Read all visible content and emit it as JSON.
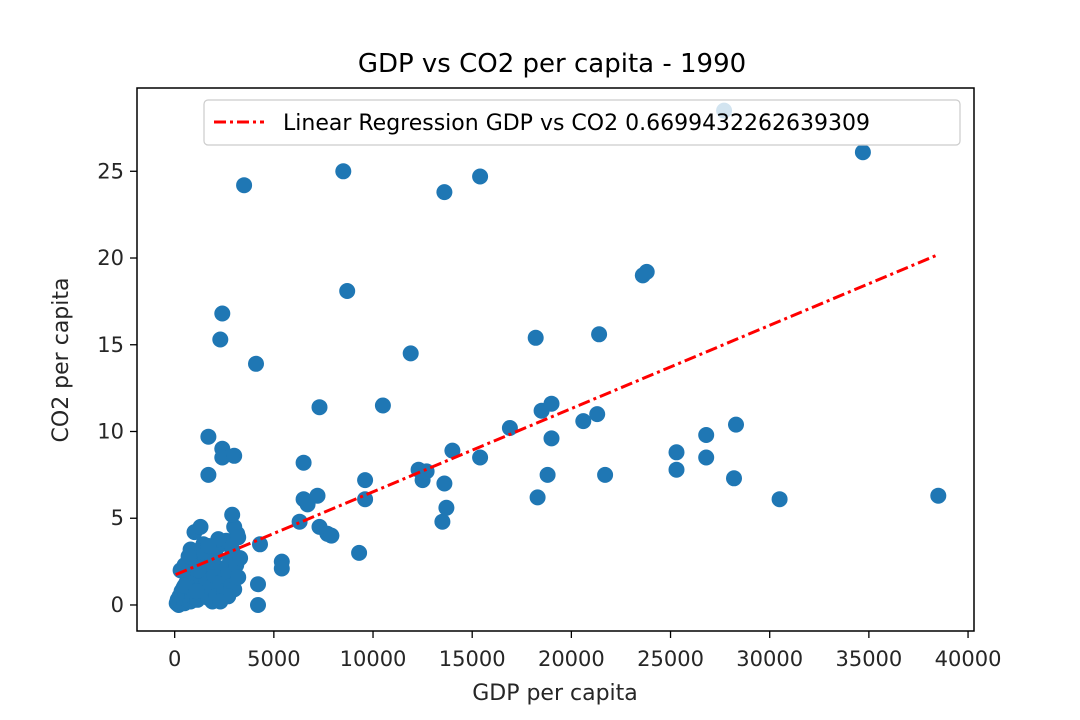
{
  "chart_data": {
    "type": "scatter",
    "title": "GDP vs CO2 per capita - 1990",
    "xlabel": "GDP per capita",
    "ylabel": "CO2 per capita",
    "xlim": [
      -1900,
      40300
    ],
    "ylim": [
      -1.5,
      29.8
    ],
    "x_ticks": [
      0,
      5000,
      10000,
      15000,
      20000,
      25000,
      30000,
      35000,
      40000
    ],
    "x_tick_labels": [
      "0",
      "5000",
      "10000",
      "15000",
      "20000",
      "25000",
      "30000",
      "35000",
      "40000"
    ],
    "y_ticks": [
      0,
      5,
      10,
      15,
      20,
      25
    ],
    "y_tick_labels": [
      "0",
      "5",
      "10",
      "15",
      "20",
      "25"
    ],
    "grid": false,
    "legend_position": "upper right",
    "series": [
      {
        "kind": "scatter",
        "color": "#1f77b4",
        "points": [
          [
            100,
            0.1
          ],
          [
            150,
            0.3
          ],
          [
            200,
            0.0
          ],
          [
            250,
            0.5
          ],
          [
            300,
            0.2
          ],
          [
            350,
            0.8
          ],
          [
            400,
            0.4
          ],
          [
            450,
            1.0
          ],
          [
            500,
            0.1
          ],
          [
            550,
            0.6
          ],
          [
            600,
            1.3
          ],
          [
            650,
            0.3
          ],
          [
            700,
            0.9
          ],
          [
            750,
            1.6
          ],
          [
            800,
            0.2
          ],
          [
            850,
            1.1
          ],
          [
            900,
            0.5
          ],
          [
            950,
            2.0
          ],
          [
            1000,
            0.7
          ],
          [
            1050,
            1.4
          ],
          [
            1100,
            2.6
          ],
          [
            1150,
            0.3
          ],
          [
            1200,
            1.8
          ],
          [
            1250,
            3.1
          ],
          [
            1300,
            0.9
          ],
          [
            1350,
            2.2
          ],
          [
            1400,
            1.2
          ],
          [
            1450,
            3.5
          ],
          [
            1500,
            0.6
          ],
          [
            1550,
            2.8
          ],
          [
            1600,
            1.5
          ],
          [
            1700,
            0.4
          ],
          [
            1750,
            2.4
          ],
          [
            1800,
            1.0
          ],
          [
            1850,
            3.0
          ],
          [
            1900,
            0.2
          ],
          [
            2000,
            1.7
          ],
          [
            2050,
            2.9
          ],
          [
            2100,
            0.5
          ],
          [
            2200,
            3.4
          ],
          [
            2300,
            1.3
          ],
          [
            2400,
            2.1
          ],
          [
            2500,
            0.8
          ],
          [
            2600,
            3.7
          ],
          [
            2700,
            1.9
          ],
          [
            2800,
            2.6
          ],
          [
            2850,
            1.1
          ],
          [
            2900,
            3.2
          ],
          [
            3000,
            0.9
          ],
          [
            3100,
            2.3
          ],
          [
            3150,
            4.1
          ],
          [
            3200,
            1.6
          ],
          [
            3000,
            4.5
          ],
          [
            2900,
            5.2
          ],
          [
            1000,
            4.2
          ],
          [
            1300,
            4.5
          ],
          [
            800,
            3.2
          ],
          [
            1500,
            3.0
          ],
          [
            3200,
            3.9
          ],
          [
            300,
            2.0
          ],
          [
            500,
            2.3
          ],
          [
            1200,
            2.0
          ],
          [
            2200,
            3.8
          ],
          [
            500,
            1.1
          ],
          [
            2700,
            0.5
          ],
          [
            1900,
            2.5
          ],
          [
            1100,
            0.8
          ],
          [
            700,
            2.8
          ],
          [
            2300,
            0.2
          ],
          [
            3300,
            2.7
          ],
          [
            1700,
            3.4
          ],
          [
            1700,
            9.7
          ],
          [
            2400,
            9.0
          ],
          [
            2400,
            8.5
          ],
          [
            3000,
            8.6
          ],
          [
            1700,
            7.5
          ],
          [
            2400,
            16.8
          ],
          [
            2300,
            15.3
          ],
          [
            4100,
            13.9
          ],
          [
            3500,
            24.2
          ],
          [
            4200,
            1.2
          ],
          [
            4200,
            0.0
          ],
          [
            4300,
            3.5
          ],
          [
            5400,
            2.5
          ],
          [
            5400,
            2.1
          ],
          [
            6300,
            4.8
          ],
          [
            6500,
            6.1
          ],
          [
            6500,
            8.2
          ],
          [
            6700,
            5.8
          ],
          [
            7200,
            6.3
          ],
          [
            7300,
            11.4
          ],
          [
            7300,
            4.5
          ],
          [
            7700,
            4.1
          ],
          [
            7900,
            4.0
          ],
          [
            8500,
            25.0
          ],
          [
            8700,
            18.1
          ],
          [
            9300,
            3.0
          ],
          [
            9600,
            7.2
          ],
          [
            9600,
            6.1
          ],
          [
            10500,
            11.5
          ],
          [
            11900,
            14.5
          ],
          [
            12300,
            7.8
          ],
          [
            12500,
            7.2
          ],
          [
            12700,
            7.7
          ],
          [
            13500,
            4.8
          ],
          [
            13600,
            7.0
          ],
          [
            13700,
            5.6
          ],
          [
            13600,
            23.8
          ],
          [
            14000,
            8.9
          ],
          [
            15400,
            24.7
          ],
          [
            15400,
            8.5
          ],
          [
            16900,
            10.2
          ],
          [
            18200,
            15.4
          ],
          [
            18300,
            6.2
          ],
          [
            18500,
            11.2
          ],
          [
            18800,
            7.5
          ],
          [
            19000,
            11.6
          ],
          [
            19000,
            9.6
          ],
          [
            20600,
            10.6
          ],
          [
            21300,
            11.0
          ],
          [
            21400,
            15.6
          ],
          [
            21700,
            7.5
          ],
          [
            23600,
            19.0
          ],
          [
            23800,
            19.2
          ],
          [
            25300,
            8.8
          ],
          [
            25300,
            7.8
          ],
          [
            26800,
            9.8
          ],
          [
            26800,
            8.5
          ],
          [
            27700,
            28.5
          ],
          [
            28200,
            7.3
          ],
          [
            28300,
            10.4
          ],
          [
            30500,
            6.1
          ],
          [
            34700,
            26.1
          ],
          [
            38500,
            6.3
          ]
        ]
      },
      {
        "kind": "line",
        "name": "Linear Regression GDP vs CO2 0.6699432262639309",
        "color": "#ff0000",
        "style": "dashdot",
        "x": [
          50,
          38400
        ],
        "y": [
          1.75,
          20.15
        ]
      }
    ]
  }
}
